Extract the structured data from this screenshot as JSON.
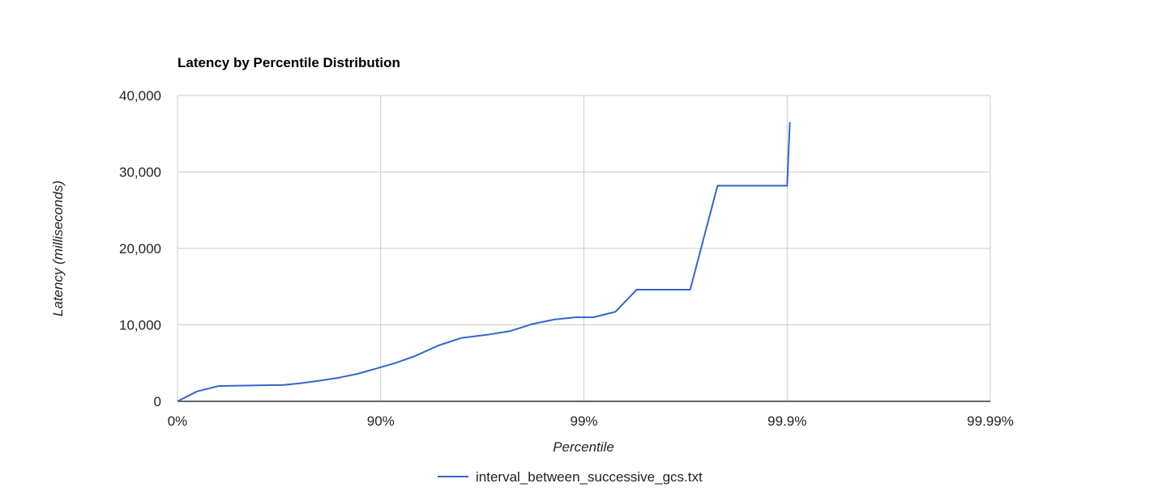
{
  "chart_data": {
    "type": "line",
    "title": "Latency by Percentile Distribution",
    "xlabel": "Percentile",
    "ylabel": "Latency (milliseconds)",
    "x_scale": "nines",
    "x_ticks": [
      "0%",
      "90%",
      "99%",
      "99.9%",
      "99.99%"
    ],
    "y_ticks": [
      "0",
      "10,000",
      "20,000",
      "30,000",
      "40,000"
    ],
    "ylim": [
      0,
      40000
    ],
    "grid": true,
    "legend": "bottom",
    "series": [
      {
        "name": "interval_between_successive_gcs.txt",
        "color": "#3366cc",
        "x": [
          0,
          20,
          37,
          50,
          60,
          70,
          75,
          80,
          84,
          87,
          89.5,
          91.5,
          93.2,
          94.8,
          96,
          97,
          97.7,
          98.2,
          98.6,
          98.9,
          99.1,
          99.3,
          99.45,
          99.57,
          99.67,
          99.7,
          99.78,
          99.79,
          99.8,
          99.88,
          99.89,
          99.9,
          99.903
        ],
        "y": [
          0,
          1300,
          2000,
          2050,
          2100,
          2150,
          2350,
          2700,
          3100,
          3600,
          4300,
          5000,
          5900,
          7300,
          8300,
          8700,
          9200,
          10100,
          10700,
          11000,
          11000,
          11700,
          14600,
          14600,
          14600,
          14600,
          28200,
          28200,
          28200,
          28200,
          28200,
          28200,
          36500
        ]
      }
    ]
  }
}
